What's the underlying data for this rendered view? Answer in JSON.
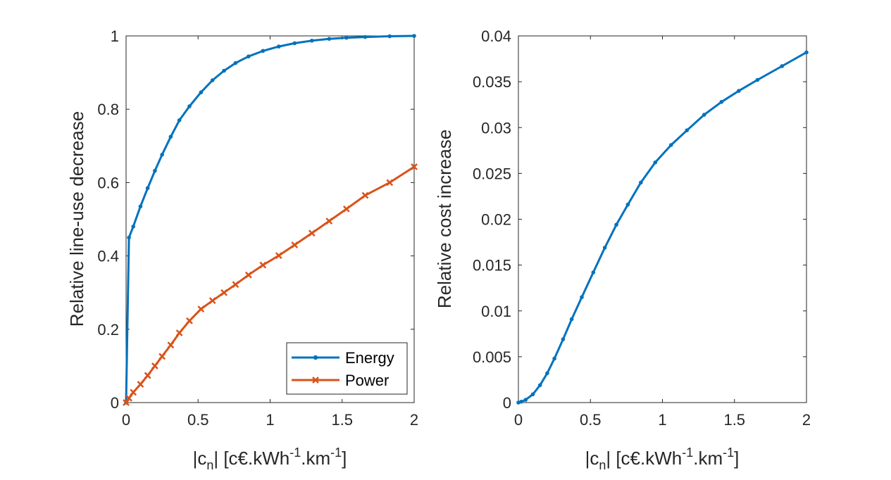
{
  "chart_data": [
    {
      "type": "line",
      "xlabel": {
        "pre": "|c",
        "sub": "n",
        "mid1": "| [c€.kWh",
        "sup1": "-1",
        "mid2": ".km",
        "sup2": "-1",
        "post": "]"
      },
      "ylabel": "Relative line-use decrease",
      "xlim": [
        0,
        2
      ],
      "ylim": [
        0,
        1
      ],
      "xticks": [
        "0",
        "0.5",
        "1",
        "1.5",
        "2"
      ],
      "yticks": [
        "0",
        "0.2",
        "0.4",
        "0.6",
        "0.8",
        "1"
      ],
      "legend": {
        "location": "bottom-right"
      },
      "series": [
        {
          "name": "Energy",
          "color": "#0072BD",
          "marker": "dot",
          "x": [
            0,
            0.02,
            0.05,
            0.1,
            0.15,
            0.2,
            0.25,
            0.31,
            0.37,
            0.44,
            0.52,
            0.6,
            0.68,
            0.76,
            0.85,
            0.95,
            1.06,
            1.17,
            1.29,
            1.41,
            1.53,
            1.66,
            1.83,
            2.0
          ],
          "y": [
            0,
            0.45,
            0.48,
            0.535,
            0.585,
            0.632,
            0.676,
            0.725,
            0.77,
            0.808,
            0.846,
            0.879,
            0.905,
            0.926,
            0.944,
            0.959,
            0.971,
            0.98,
            0.987,
            0.992,
            0.995,
            0.997,
            0.999,
            1.0
          ]
        },
        {
          "name": "Power",
          "color": "#D95319",
          "marker": "x",
          "x": [
            0,
            0.02,
            0.05,
            0.1,
            0.15,
            0.2,
            0.25,
            0.31,
            0.37,
            0.44,
            0.52,
            0.6,
            0.68,
            0.76,
            0.85,
            0.95,
            1.06,
            1.17,
            1.29,
            1.41,
            1.53,
            1.66,
            1.83,
            2.0
          ],
          "y": [
            0,
            0.012,
            0.028,
            0.05,
            0.074,
            0.1,
            0.126,
            0.157,
            0.19,
            0.223,
            0.255,
            0.278,
            0.3,
            0.322,
            0.348,
            0.375,
            0.401,
            0.43,
            0.462,
            0.495,
            0.528,
            0.565,
            0.6,
            0.643
          ]
        }
      ]
    },
    {
      "type": "line",
      "xlabel": {
        "pre": "|c",
        "sub": "n",
        "mid1": "| [c€.kWh",
        "sup1": "-1",
        "mid2": ".km",
        "sup2": "-1",
        "post": "]"
      },
      "ylabel": "Relative cost increase",
      "xlim": [
        0,
        2
      ],
      "ylim": [
        0,
        0.04
      ],
      "xticks": [
        "0",
        "0.5",
        "1",
        "1.5",
        "2"
      ],
      "yticks": [
        "0",
        "0.005",
        "0.01",
        "0.015",
        "0.02",
        "0.025",
        "0.03",
        "0.035",
        "0.04"
      ],
      "series": [
        {
          "color": "#0072BD",
          "marker": "dot",
          "x": [
            0,
            0.02,
            0.05,
            0.1,
            0.15,
            0.2,
            0.25,
            0.31,
            0.37,
            0.44,
            0.52,
            0.6,
            0.68,
            0.76,
            0.85,
            0.95,
            1.06,
            1.17,
            1.29,
            1.41,
            1.53,
            1.66,
            1.83,
            2.0
          ],
          "y": [
            0,
            0.0001,
            0.0003,
            0.0009,
            0.0019,
            0.0032,
            0.0048,
            0.0069,
            0.0091,
            0.0115,
            0.0142,
            0.0169,
            0.0194,
            0.0216,
            0.024,
            0.0262,
            0.0281,
            0.0297,
            0.0314,
            0.0328,
            0.034,
            0.0352,
            0.0367,
            0.0382
          ]
        }
      ]
    }
  ]
}
